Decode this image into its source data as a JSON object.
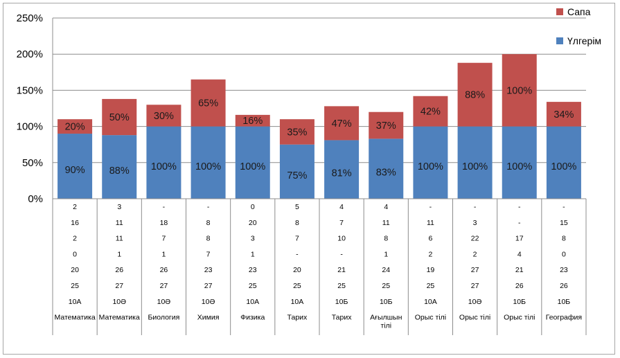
{
  "chart_data": {
    "type": "bar",
    "stacked": true,
    "title": "",
    "xlabel": "",
    "ylabel": "",
    "ylim": [
      0,
      250
    ],
    "yticks": [
      "0%",
      "50%",
      "100%",
      "150%",
      "200%",
      "250%"
    ],
    "grid": true,
    "legend_position": "top-right",
    "categories": [
      "Математика",
      "Математика",
      "Биология",
      "Химия",
      "Физика",
      "Тарих",
      "Тарих",
      "Ағылшын тілі",
      "Орыс тілі",
      "Орыс тілі",
      "Орыс тілі",
      "География"
    ],
    "series": [
      {
        "name": "Үлгерім",
        "color": "#4f81bd",
        "values": [
          90,
          88,
          100,
          100,
          100,
          75,
          81,
          83,
          100,
          100,
          100,
          100
        ],
        "labels": [
          "90%",
          "88%",
          "100%",
          "100%",
          "100%",
          "75%",
          "81%",
          "83%",
          "100%",
          "100%",
          "100%",
          "100%"
        ]
      },
      {
        "name": "Сапа",
        "color": "#c0504d",
        "values": [
          20,
          50,
          30,
          65,
          16,
          35,
          47,
          37,
          42,
          88,
          100,
          34
        ],
        "labels": [
          "20%",
          "50%",
          "30%",
          "65%",
          "16%",
          "35%",
          "47%",
          "37%",
          "42%",
          "88%",
          "100%",
          "34%"
        ]
      }
    ],
    "table_rows": [
      [
        "2",
        "3",
        "-",
        "-",
        "0",
        "5",
        "4",
        "4",
        "-",
        "-",
        "-",
        "-"
      ],
      [
        "16",
        "11",
        "18",
        "8",
        "20",
        "8",
        "7",
        "11",
        "11",
        "3",
        "-",
        "15"
      ],
      [
        "2",
        "11",
        "7",
        "8",
        "3",
        "7",
        "10",
        "8",
        "6",
        "22",
        "17",
        "8"
      ],
      [
        "0",
        "1",
        "1",
        "7",
        "1",
        "-",
        "-",
        "1",
        "2",
        "2",
        "4",
        "0"
      ],
      [
        "20",
        "26",
        "26",
        "23",
        "23",
        "20",
        "21",
        "24",
        "19",
        "27",
        "21",
        "23"
      ],
      [
        "25",
        "27",
        "27",
        "27",
        "25",
        "25",
        "25",
        "25",
        "25",
        "27",
        "26",
        "26"
      ],
      [
        "10А",
        "10Ә",
        "10Ә",
        "10Ә",
        "10А",
        "10А",
        "10Б",
        "10Б",
        "10А",
        "10Ә",
        "10Б",
        "10Б"
      ]
    ]
  }
}
